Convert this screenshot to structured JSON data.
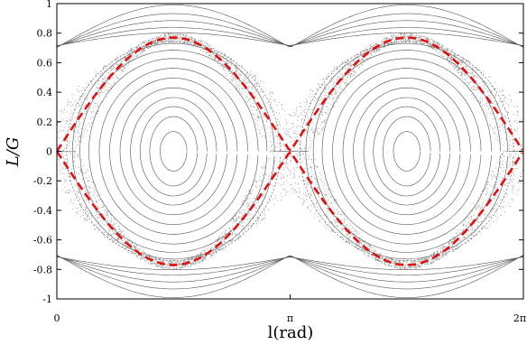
{
  "chart_data": {
    "type": "line",
    "title": "",
    "xlabel": "l(rad)",
    "ylabel": "L/G",
    "xlim": [
      0,
      6.2832
    ],
    "ylim": [
      -1,
      1
    ],
    "x_ticks": [
      {
        "value": 0,
        "label": "0"
      },
      {
        "value": 3.1416,
        "label": "π"
      },
      {
        "value": 6.2832,
        "label": "2π"
      }
    ],
    "y_ticks": [
      {
        "value": 1,
        "label": "1"
      },
      {
        "value": 0.8,
        "label": "0.8"
      },
      {
        "value": 0.6,
        "label": "0.6"
      },
      {
        "value": 0.4,
        "label": "0.4"
      },
      {
        "value": 0.2,
        "label": "0.2"
      },
      {
        "value": 0,
        "label": "0"
      },
      {
        "value": -0.2,
        "label": "-0.2"
      },
      {
        "value": -0.4,
        "label": "-0.4"
      },
      {
        "value": -0.6,
        "label": "-0.6"
      },
      {
        "value": -0.8,
        "label": "-0.8"
      },
      {
        "value": -1,
        "label": "-1"
      }
    ],
    "grid": false,
    "islands": [
      {
        "center_x": 1.5708,
        "center_y": 0
      },
      {
        "center_x": 4.7124,
        "center_y": 0
      }
    ],
    "separatrix": {
      "style": "dashed",
      "color": "#e01010",
      "max_abs_y": 0.77,
      "x_points": [
        0.15,
        3.1416,
        6.1332
      ]
    },
    "chaotic_layer_color": "#8a8a8a",
    "orbit_color": "#555555",
    "outer_orbit_offsets": [
      0.79,
      0.82,
      0.86,
      0.9,
      0.95
    ]
  }
}
